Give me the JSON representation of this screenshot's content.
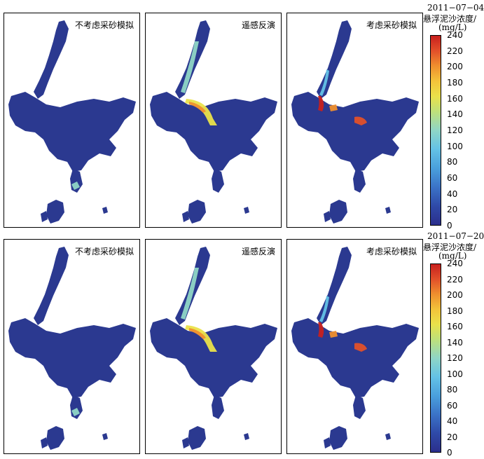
{
  "rows": [
    {
      "date": "2011−07−04",
      "panels": [
        {
          "title": "不考虑采砂模拟",
          "variant": "nosand"
        },
        {
          "title": "遥感反演",
          "variant": "rs"
        },
        {
          "title": "考虑采砂模拟",
          "variant": "sand"
        }
      ]
    },
    {
      "date": "2011−07−20",
      "panels": [
        {
          "title": "不考虑采砂模拟",
          "variant": "nosand"
        },
        {
          "title": "遥感反演",
          "variant": "rs"
        },
        {
          "title": "考虑采砂模拟",
          "variant": "sand"
        }
      ]
    }
  ],
  "legend": {
    "unit_line1": "悬浮泥沙浓度/",
    "unit_line2": "(mg/L)",
    "ticks": [
      "240",
      "220",
      "200",
      "180",
      "160",
      "140",
      "120",
      "100",
      "80",
      "60",
      "40",
      "20",
      "0"
    ],
    "range": [
      0,
      240
    ]
  },
  "colors": {
    "water": "#2b3990",
    "low": "#2b2f8c",
    "mid": "#64c2e6",
    "high": "#c8201e"
  }
}
